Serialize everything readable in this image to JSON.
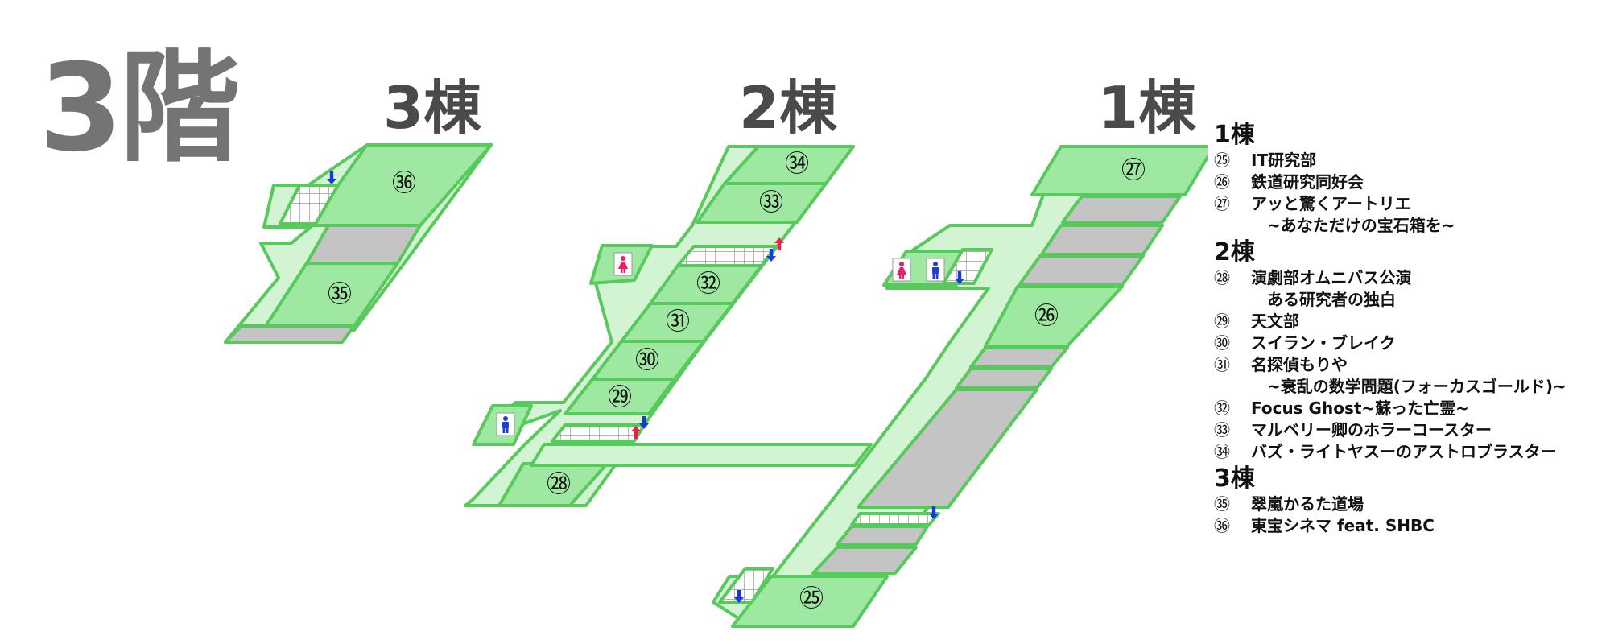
{
  "floor_title": "3階",
  "buildings": {
    "b3": "3棟",
    "b2": "2棟",
    "b1": "1棟"
  },
  "rooms": {
    "r25": "㉕",
    "r26": "㉖",
    "r27": "㉗",
    "r28": "㉘",
    "r29": "㉙",
    "r30": "㉚",
    "r31": "㉛",
    "r32": "㉜",
    "r33": "㉝",
    "r34": "㉞",
    "r35": "㉟",
    "r36": "㊱"
  },
  "colors": {
    "room_fill": "#9ee8a2",
    "corridor_fill": "#d2f4d3",
    "outline": "#58c95c",
    "closed_fill": "#c4c4c4",
    "male_icon": "#1f3fd0",
    "female_icon": "#e8206a",
    "down_arrow": "#1a3ad8",
    "up_arrow": "#e8204a"
  },
  "icons": [
    "stairs-icon",
    "down-arrow-icon",
    "up-arrow-icon",
    "male-restroom-icon",
    "female-restroom-icon"
  ],
  "legend": [
    {
      "heading": "1棟",
      "items": [
        {
          "num": "㉕",
          "name": "IT研究部"
        },
        {
          "num": "㉖",
          "name": "鉄道研究同好会"
        },
        {
          "num": "㉗",
          "name": "アッと驚くアートリエ",
          "sub": "~あなただけの宝石箱を~"
        }
      ]
    },
    {
      "heading": "2棟",
      "items": [
        {
          "num": "㉘",
          "name": "演劇部オムニバス公演",
          "sub": "ある研究者の独白"
        },
        {
          "num": "㉙",
          "name": "天文部"
        },
        {
          "num": "㉚",
          "name": "スイラン・ブレイク"
        },
        {
          "num": "㉛",
          "name": "名探偵もりや",
          "sub": "~衰乱の数学問題(フォーカスゴールド)~"
        },
        {
          "num": "㉜",
          "name": "Focus Ghost~蘇った亡霊~"
        },
        {
          "num": "㉝",
          "name": "マルベリー卿のホラーコースター"
        },
        {
          "num": "㉞",
          "name": "バズ・ライトヤスーのアストロブラスター"
        }
      ]
    },
    {
      "heading": "3棟",
      "items": [
        {
          "num": "㉟",
          "name": "翠嵐かるた道場"
        },
        {
          "num": "㊱",
          "name": "東宝シネマ feat. SHBC"
        }
      ]
    }
  ]
}
